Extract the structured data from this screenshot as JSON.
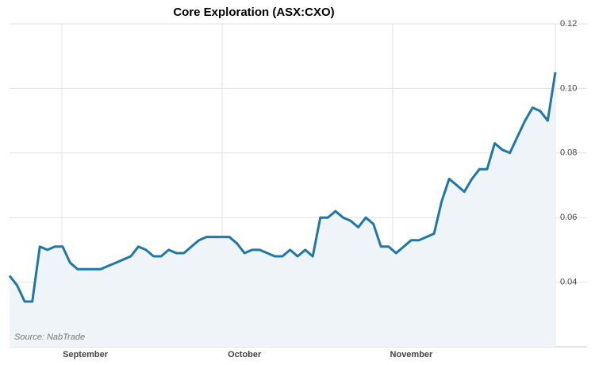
{
  "chart_data": {
    "type": "line",
    "title": "Core Exploration (ASX:CXO)",
    "source": "Source: NabTrade",
    "categories": [
      null,
      null,
      null,
      null,
      null,
      null,
      null,
      null,
      null,
      null,
      "September",
      null,
      null,
      null,
      null,
      null,
      null,
      null,
      null,
      null,
      null,
      null,
      null,
      null,
      null,
      null,
      null,
      null,
      null,
      null,
      null,
      "October",
      null,
      null,
      null,
      null,
      null,
      null,
      null,
      null,
      null,
      null,
      null,
      null,
      null,
      null,
      null,
      null,
      null,
      null,
      null,
      null,
      null,
      "November",
      null,
      null,
      null,
      null,
      null,
      null,
      null,
      null,
      null,
      null,
      null,
      null,
      null,
      null,
      null,
      null,
      null,
      null,
      null
    ],
    "series": [
      {
        "name": "CXO",
        "color": "#1f77a8",
        "values": [
          0.042,
          0.039,
          0.034,
          0.034,
          0.051,
          0.05,
          0.051,
          0.051,
          0.046,
          0.044,
          0.044,
          0.044,
          0.044,
          0.045,
          0.046,
          0.047,
          0.048,
          0.051,
          0.05,
          0.048,
          0.048,
          0.05,
          0.049,
          0.049,
          0.051,
          0.053,
          0.054,
          0.054,
          0.054,
          0.054,
          0.052,
          0.049,
          0.05,
          0.05,
          0.049,
          0.048,
          0.048,
          0.05,
          0.048,
          0.05,
          0.048,
          0.06,
          0.06,
          0.062,
          0.06,
          0.059,
          0.057,
          0.06,
          0.058,
          0.051,
          0.051,
          0.049,
          0.051,
          0.053,
          0.053,
          0.054,
          0.055,
          0.065,
          0.072,
          0.07,
          0.068,
          0.072,
          0.075,
          0.075,
          0.083,
          0.081,
          0.08,
          0.085,
          0.09,
          0.094,
          0.093,
          0.09,
          0.105
        ]
      }
    ],
    "ylim": [
      0.02,
      0.12
    ],
    "yticks": [
      0.04,
      0.06,
      0.08,
      {
        "value": 0.1,
        "label": "0.10"
      },
      0.12
    ],
    "grid": true
  }
}
